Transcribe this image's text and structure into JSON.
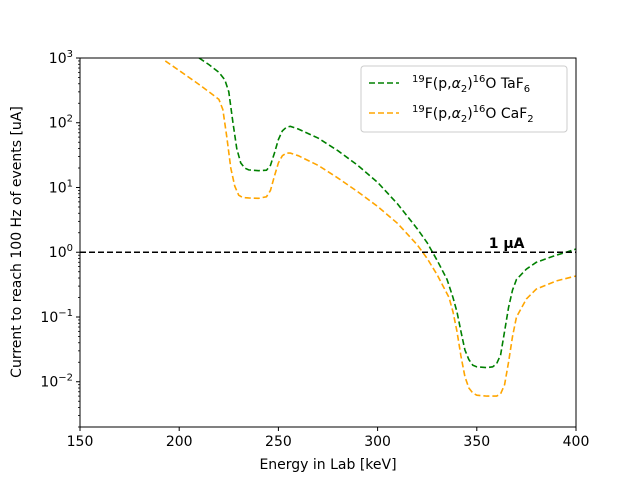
{
  "chart_data": {
    "type": "line",
    "xlabel": "Energy in Lab [keV]",
    "ylabel": "Current to reach 100 Hz of events [uA]",
    "xlim": [
      150,
      400
    ],
    "ylim": [
      0.002,
      1000
    ],
    "yscale": "log",
    "x_ticks": [
      150,
      200,
      250,
      300,
      350,
      400
    ],
    "x_tick_labels": [
      "150",
      "200",
      "250",
      "300",
      "350",
      "400"
    ],
    "y_ticks": [
      0.01,
      0.1,
      1,
      10,
      100,
      1000
    ],
    "y_tick_labels": [
      {
        "base": "10",
        "exp": "−2"
      },
      {
        "base": "10",
        "exp": "−1"
      },
      {
        "base": "10",
        "exp": "0"
      },
      {
        "base": "10",
        "exp": "1"
      },
      {
        "base": "10",
        "exp": "2"
      },
      {
        "base": "10",
        "exp": "3"
      }
    ],
    "grid": false,
    "legend_position": "top-right",
    "reference_line": {
      "y": 1,
      "color": "#000000",
      "style": "dashed"
    },
    "annotation": {
      "text": "1 μA",
      "x": 356,
      "y": 1.4
    },
    "series": [
      {
        "name": "¹⁹F(p,α₂)¹⁶O TaF₆",
        "legend": {
          "pre": "19",
          "a": "F(p,",
          "sym": "α",
          "sub1": "2",
          "b": ")",
          "sup2": "16",
          "c": "O TaF",
          "sub2": "6"
        },
        "color": "#008000",
        "style": "dashed",
        "x": [
          210,
          215,
          220,
          223,
          225,
          227,
          229,
          231,
          233,
          235,
          240,
          244,
          246,
          248,
          250,
          252,
          254,
          256,
          260,
          270,
          280,
          290,
          300,
          310,
          320,
          325,
          330,
          335,
          338,
          340,
          342,
          344,
          346,
          348,
          350,
          355,
          358,
          360,
          362,
          364,
          366,
          368,
          370,
          375,
          380,
          390,
          395,
          400
        ],
        "y": [
          1000,
          790,
          600,
          460,
          300,
          105,
          40,
          24,
          20,
          18.7,
          18.2,
          18.5,
          22,
          34,
          55,
          75,
          85,
          88,
          80,
          58,
          37,
          22,
          12,
          5.6,
          2.3,
          1.4,
          0.75,
          0.38,
          0.2,
          0.12,
          0.06,
          0.031,
          0.022,
          0.018,
          0.017,
          0.0165,
          0.017,
          0.019,
          0.026,
          0.06,
          0.14,
          0.26,
          0.38,
          0.55,
          0.7,
          0.9,
          1.0,
          1.12
        ]
      },
      {
        "name": "¹⁹F(p,α₂)¹⁶O CaF₂",
        "legend": {
          "pre": "19",
          "a": "F(p,",
          "sym": "α",
          "sub1": "2",
          "b": ")",
          "sup2": "16",
          "c": "O CaF",
          "sub2": "2"
        },
        "color": "#ffa500",
        "style": "dashed",
        "x": [
          193,
          200,
          205,
          210,
          215,
          220,
          222,
          224,
          226,
          228,
          230,
          232,
          235,
          240,
          244,
          246,
          248,
          250,
          252,
          254,
          256,
          260,
          270,
          280,
          290,
          300,
          310,
          320,
          325,
          330,
          333,
          336,
          338,
          340,
          342,
          344,
          346,
          348,
          350,
          355,
          360,
          362,
          364,
          366,
          368,
          370,
          375,
          380,
          390,
          400
        ],
        "y": [
          900,
          640,
          500,
          390,
          300,
          230,
          160,
          60,
          20,
          10.5,
          7.6,
          7.0,
          6.9,
          6.8,
          7.2,
          9,
          15,
          24,
          31,
          34,
          34,
          31,
          22,
          14,
          8.6,
          5.1,
          2.8,
          1.3,
          0.8,
          0.45,
          0.3,
          0.2,
          0.12,
          0.06,
          0.025,
          0.012,
          0.008,
          0.0067,
          0.0062,
          0.006,
          0.006,
          0.0065,
          0.009,
          0.02,
          0.05,
          0.1,
          0.19,
          0.27,
          0.36,
          0.43
        ]
      }
    ]
  }
}
